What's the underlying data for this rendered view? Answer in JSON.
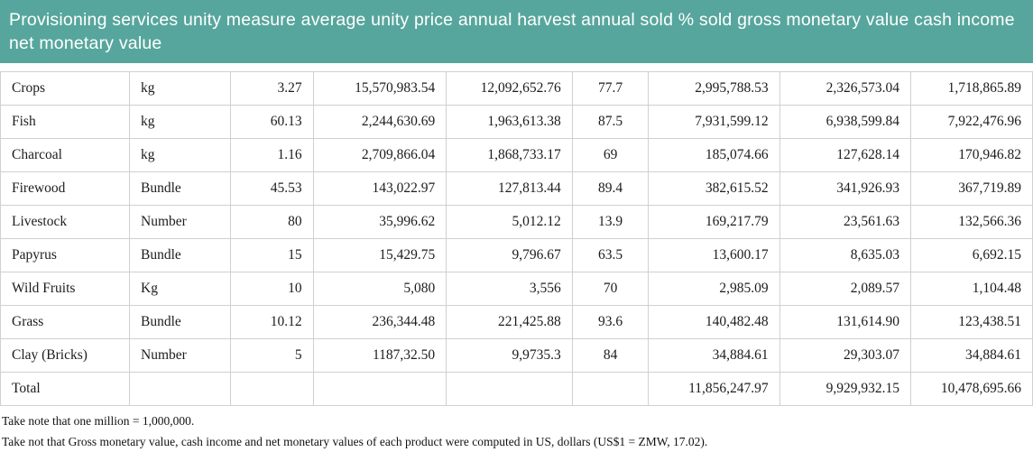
{
  "banner": {
    "title": "Provisioning services unity measure average unity price annual harvest annual sold % sold gross monetary value cash income net monetary value",
    "bg_color": "#57A69D",
    "text_color": "#FFFFFF"
  },
  "table": {
    "column_names": [
      "Provisioning services",
      "unity measure",
      "average unity price",
      "annual harvest",
      "annual sold",
      "% sold",
      "gross monetary value",
      "cash income",
      "net monetary value"
    ],
    "rows": [
      [
        "Crops",
        "kg",
        "3.27",
        "15,570,983.54",
        "12,092,652.76",
        "77.7",
        "2,995,788.53",
        "2,326,573.04",
        "1,718,865.89"
      ],
      [
        "Fish",
        "kg",
        "60.13",
        "2,244,630.69",
        "1,963,613.38",
        "87.5",
        "7,931,599.12",
        "6,938,599.84",
        "7,922,476.96"
      ],
      [
        "Charcoal",
        "kg",
        "1.16",
        "2,709,866.04",
        "1,868,733.17",
        "69",
        "185,074.66",
        "127,628.14",
        "170,946.82"
      ],
      [
        "Firewood",
        "Bundle",
        "45.53",
        "143,022.97",
        "127,813.44",
        "89.4",
        "382,615.52",
        "341,926.93",
        "367,719.89"
      ],
      [
        "Livestock",
        "Number",
        "80",
        "35,996.62",
        "5,012.12",
        "13.9",
        "169,217.79",
        "23,561.63",
        "132,566.36"
      ],
      [
        "Papyrus",
        "Bundle",
        "15",
        "15,429.75",
        "9,796.67",
        "63.5",
        "13,600.17",
        "8,635.03",
        "6,692.15"
      ],
      [
        "Wild Fruits",
        "Kg",
        "10",
        "5,080",
        "3,556",
        "70",
        "2,985.09",
        "2,089.57",
        "1,104.48"
      ],
      [
        "Grass",
        "Bundle",
        "10.12",
        "236,344.48",
        "221,425.88",
        "93.6",
        "140,482.48",
        "131,614.90",
        "123,438.51"
      ],
      [
        "Clay (Bricks)",
        "Number",
        "5",
        "1187,32.50",
        "9,9735.3",
        "84",
        "34,884.61",
        "29,303.07",
        "34,884.61"
      ],
      [
        "Total",
        "",
        "",
        "",
        "",
        "",
        "11,856,247.97",
        "9,929,932.15",
        "10,478,695.66"
      ]
    ]
  },
  "footnotes": {
    "line1": "Take note that one million = 1,000,000.",
    "line2": "Take not that Gross monetary value, cash income and net monetary values of each product were computed in US, dollars (US$1 = ZMW, 17.02)."
  }
}
